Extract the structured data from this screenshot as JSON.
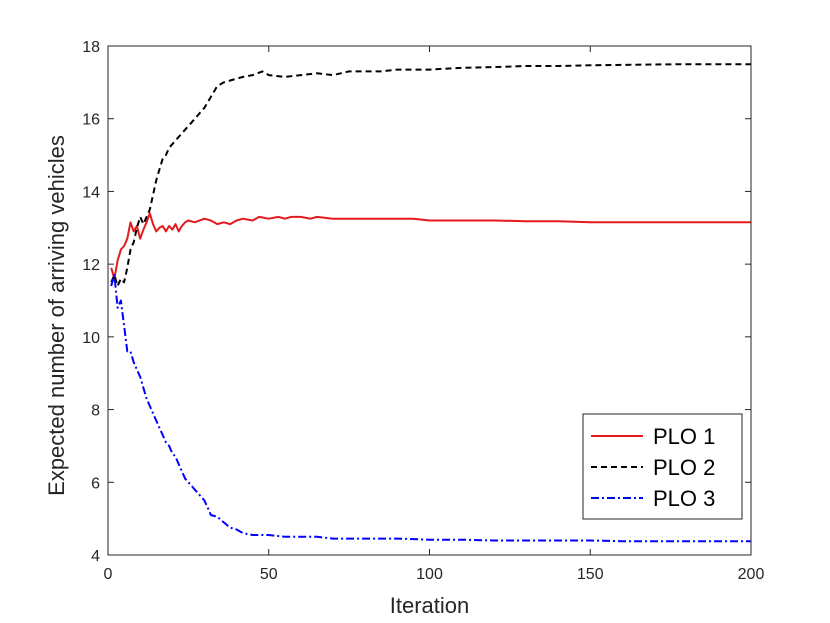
{
  "chart_data": {
    "type": "line",
    "title": "",
    "xlabel": "Iteration",
    "ylabel": "Expected number of arriving vehicles",
    "xlim": [
      0,
      200
    ],
    "ylim": [
      4,
      18
    ],
    "xticks": [
      0,
      50,
      100,
      150,
      200
    ],
    "yticks": [
      4,
      6,
      8,
      10,
      12,
      14,
      16,
      18
    ],
    "legend_position": "bottom-right",
    "grid": false,
    "series": [
      {
        "name": "PLO 1",
        "color": "#e41a1c",
        "linestyle": "solid",
        "x": [
          1,
          2,
          3,
          4,
          5,
          6,
          7,
          8,
          9,
          10,
          11,
          12,
          13,
          14,
          15,
          16,
          17,
          18,
          19,
          20,
          21,
          22,
          23,
          24,
          25,
          27,
          30,
          32,
          34,
          36,
          38,
          40,
          42,
          45,
          47,
          50,
          53,
          55,
          57,
          60,
          63,
          65,
          70,
          75,
          80,
          85,
          90,
          95,
          100,
          110,
          120,
          130,
          140,
          150,
          160,
          170,
          180,
          190,
          200
        ],
        "y": [
          11.9,
          11.6,
          12.1,
          12.4,
          12.5,
          12.7,
          13.15,
          12.9,
          13.05,
          12.7,
          12.95,
          13.15,
          13.4,
          13.1,
          12.9,
          13.0,
          13.05,
          12.9,
          13.05,
          12.95,
          13.1,
          12.9,
          13.05,
          13.15,
          13.2,
          13.15,
          13.25,
          13.2,
          13.1,
          13.15,
          13.1,
          13.2,
          13.25,
          13.2,
          13.3,
          13.25,
          13.3,
          13.25,
          13.3,
          13.3,
          13.25,
          13.3,
          13.25,
          13.25,
          13.25,
          13.25,
          13.25,
          13.25,
          13.2,
          13.2,
          13.2,
          13.18,
          13.18,
          13.15,
          13.15,
          13.15,
          13.15,
          13.15,
          13.15
        ]
      },
      {
        "name": "PLO 2",
        "color": "#000000",
        "linestyle": "dashed",
        "x": [
          1,
          2,
          3,
          4,
          5,
          6,
          7,
          8,
          9,
          10,
          11,
          12,
          13,
          14,
          15,
          16,
          17,
          18,
          19,
          20,
          22,
          24,
          26,
          28,
          30,
          32,
          34,
          36,
          38,
          40,
          42,
          45,
          48,
          50,
          55,
          60,
          65,
          70,
          75,
          80,
          85,
          90,
          100,
          110,
          120,
          130,
          140,
          150,
          160,
          170,
          180,
          190,
          200
        ],
        "y": [
          11.5,
          11.7,
          11.4,
          11.6,
          11.5,
          11.9,
          12.4,
          12.6,
          13.0,
          13.3,
          13.1,
          13.3,
          13.5,
          13.9,
          14.3,
          14.6,
          14.9,
          15.0,
          15.2,
          15.3,
          15.5,
          15.7,
          15.9,
          16.1,
          16.3,
          16.6,
          16.9,
          17.0,
          17.05,
          17.1,
          17.15,
          17.2,
          17.3,
          17.2,
          17.15,
          17.2,
          17.25,
          17.2,
          17.3,
          17.3,
          17.3,
          17.35,
          17.35,
          17.4,
          17.42,
          17.45,
          17.45,
          17.47,
          17.48,
          17.49,
          17.5,
          17.5,
          17.5
        ]
      },
      {
        "name": "PLO 3",
        "color": "#0000ff",
        "linestyle": "dashdot",
        "x": [
          1,
          2,
          3,
          4,
          5,
          6,
          7,
          8,
          9,
          10,
          11,
          12,
          13,
          14,
          15,
          16,
          17,
          18,
          19,
          20,
          21,
          22,
          23,
          24,
          25,
          26,
          27,
          28,
          29,
          30,
          31,
          32,
          34,
          36,
          38,
          40,
          42,
          45,
          48,
          50,
          55,
          60,
          65,
          70,
          75,
          80,
          90,
          100,
          110,
          120,
          130,
          140,
          150,
          160,
          170,
          180,
          190,
          200
        ],
        "y": [
          11.4,
          11.7,
          10.8,
          11.0,
          10.3,
          9.6,
          9.6,
          9.3,
          9.1,
          8.9,
          8.6,
          8.3,
          8.1,
          7.9,
          7.7,
          7.5,
          7.3,
          7.1,
          7.0,
          6.8,
          6.7,
          6.5,
          6.3,
          6.1,
          6.0,
          5.9,
          5.8,
          5.7,
          5.6,
          5.5,
          5.3,
          5.1,
          5.05,
          4.9,
          4.75,
          4.7,
          4.6,
          4.55,
          4.55,
          4.55,
          4.5,
          4.5,
          4.5,
          4.45,
          4.45,
          4.45,
          4.45,
          4.42,
          4.42,
          4.4,
          4.4,
          4.4,
          4.4,
          4.38,
          4.38,
          4.38,
          4.38,
          4.38
        ]
      }
    ]
  }
}
